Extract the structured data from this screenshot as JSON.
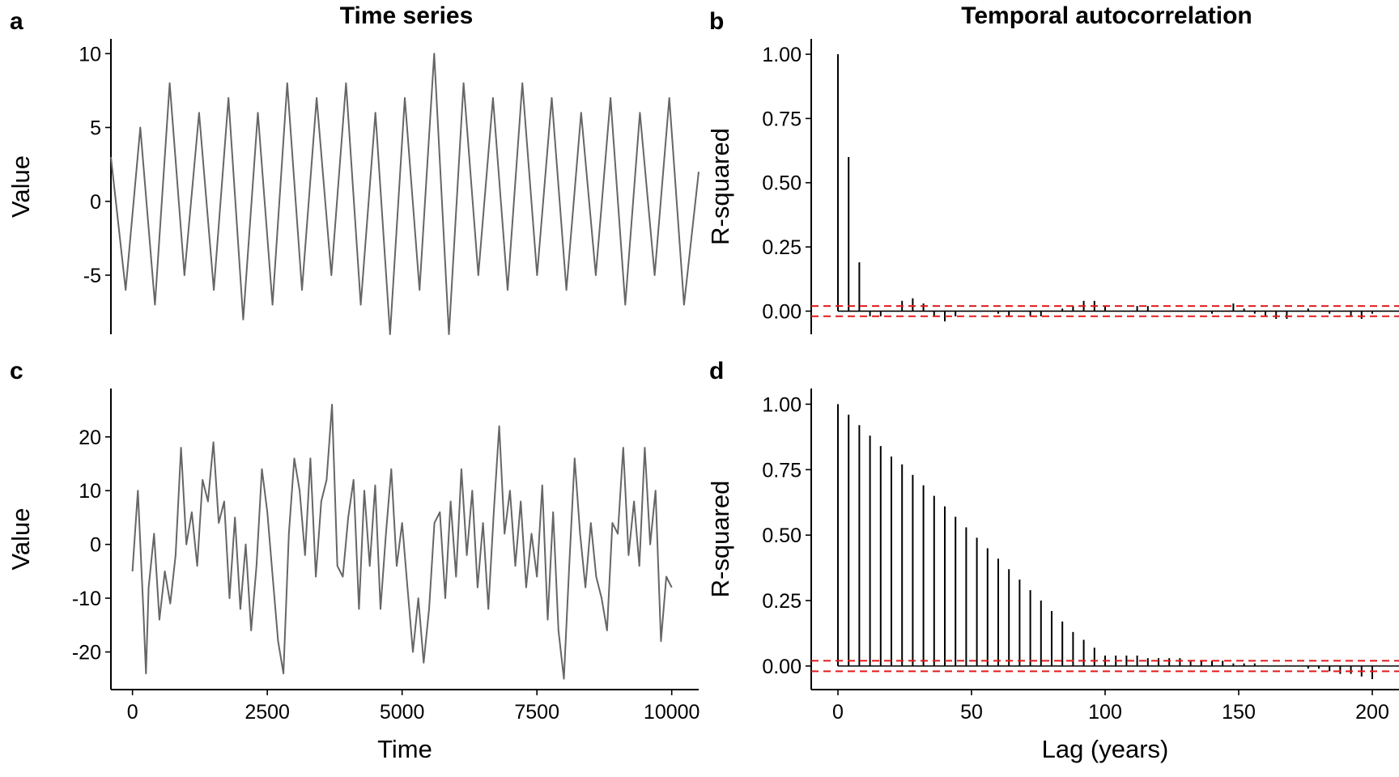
{
  "columns": {
    "left_title": "Time series",
    "right_title": "Temporal autocorrelation"
  },
  "chart_data": [
    {
      "id": "a",
      "letter": "a",
      "type": "line",
      "title": "Time series",
      "xlabel": "",
      "ylabel": "Value",
      "xlim": [
        0,
        10000
      ],
      "ylim": [
        -9,
        11
      ],
      "yticks": [
        10,
        5,
        0,
        -5
      ],
      "ytick_labels": [
        "10",
        "5",
        "0",
        "-5"
      ],
      "xticks": [],
      "grid": false,
      "color": "#666666",
      "series": [
        {
          "x": [
            0,
            250,
            500,
            750,
            1000,
            1250,
            1500,
            1750,
            2000,
            2250,
            2500,
            2750,
            3000,
            3250,
            3500,
            3750,
            4000,
            4250,
            4500,
            4750,
            5000,
            5250,
            5500,
            5750,
            6000,
            6250,
            6500,
            6750,
            7000,
            7250,
            7500,
            7750,
            8000,
            8250,
            8500,
            8750,
            9000,
            9250,
            9500,
            9750,
            10000
          ],
          "values": [
            3,
            -6,
            5,
            -7,
            8,
            -5,
            6,
            -6,
            7,
            -8,
            6,
            -7,
            8,
            -6,
            7,
            -5,
            8,
            -7,
            6,
            -9,
            7,
            -6,
            10,
            -9,
            8,
            -5,
            7,
            -6,
            8,
            -5,
            7,
            -6,
            6,
            -5,
            7,
            -7,
            6,
            -5,
            7,
            -7,
            2
          ]
        }
      ]
    },
    {
      "id": "b",
      "letter": "b",
      "type": "bar",
      "title": "Temporal autocorrelation",
      "xlabel": "",
      "ylabel": "R-squared",
      "xlim": [
        -10,
        210
      ],
      "ylim": [
        -0.09,
        1.06
      ],
      "yticks": [
        1.0,
        0.75,
        0.5,
        0.25,
        0.0
      ],
      "ytick_labels": [
        "1.00",
        "0.75",
        "0.50",
        "0.25",
        "0.00"
      ],
      "xticks": [],
      "ci": [
        0.02,
        -0.02
      ],
      "grid": false,
      "series": [
        {
          "x": [
            0,
            4,
            8,
            12,
            16,
            20,
            24,
            28,
            32,
            36,
            40,
            44,
            48,
            52,
            56,
            60,
            64,
            68,
            72,
            76,
            80,
            84,
            88,
            92,
            96,
            100,
            104,
            108,
            112,
            116,
            120,
            124,
            128,
            132,
            136,
            140,
            144,
            148,
            152,
            156,
            160,
            164,
            168,
            172,
            176,
            180,
            184,
            188,
            192,
            196,
            200
          ],
          "values": [
            1.0,
            0.6,
            0.19,
            -0.02,
            -0.02,
            0.0,
            0.04,
            0.05,
            0.03,
            -0.02,
            -0.04,
            -0.02,
            0.0,
            0.0,
            0.0,
            -0.01,
            -0.02,
            0.0,
            -0.02,
            -0.02,
            0.0,
            0.01,
            0.02,
            0.04,
            0.04,
            0.02,
            0.0,
            0.0,
            0.02,
            0.02,
            0.0,
            0.0,
            0.0,
            0.0,
            0.0,
            -0.01,
            0.0,
            0.03,
            0.01,
            -0.01,
            -0.02,
            -0.03,
            -0.03,
            0.0,
            0.01,
            0.0,
            -0.01,
            0.0,
            -0.02,
            -0.03,
            -0.01
          ]
        }
      ]
    },
    {
      "id": "c",
      "letter": "c",
      "type": "line",
      "title": "",
      "xlabel": "Time",
      "ylabel": "Value",
      "xlim": [
        -400,
        10500
      ],
      "ylim": [
        -27,
        29
      ],
      "yticks": [
        20,
        10,
        0,
        -10,
        -20
      ],
      "ytick_labels": [
        "20",
        "10",
        "0",
        "-10",
        "-20"
      ],
      "xticks": [
        0,
        2500,
        5000,
        7500,
        10000
      ],
      "xtick_labels": [
        "0",
        "2500",
        "5000",
        "7500",
        "10000"
      ],
      "grid": false,
      "color": "#666666",
      "series": [
        {
          "x": [
            0,
            100,
            200,
            250,
            300,
            400,
            500,
            600,
            700,
            800,
            900,
            1000,
            1100,
            1200,
            1300,
            1400,
            1500,
            1600,
            1700,
            1800,
            1900,
            2000,
            2100,
            2200,
            2300,
            2400,
            2500,
            2600,
            2700,
            2800,
            2900,
            3000,
            3100,
            3200,
            3300,
            3400,
            3500,
            3600,
            3700,
            3800,
            3900,
            4000,
            4100,
            4200,
            4300,
            4400,
            4500,
            4600,
            4700,
            4800,
            4900,
            5000,
            5100,
            5200,
            5300,
            5400,
            5500,
            5600,
            5700,
            5800,
            5900,
            6000,
            6100,
            6200,
            6300,
            6400,
            6500,
            6600,
            6700,
            6800,
            6900,
            7000,
            7100,
            7200,
            7300,
            7400,
            7500,
            7600,
            7700,
            7800,
            7900,
            8000,
            8100,
            8200,
            8300,
            8400,
            8500,
            8600,
            8700,
            8800,
            8900,
            9000,
            9100,
            9200,
            9300,
            9400,
            9500,
            9600,
            9700,
            9800,
            9900,
            10000
          ],
          "values": [
            -5,
            10,
            -12,
            -24,
            -8,
            2,
            -14,
            -5,
            -11,
            -2,
            18,
            0,
            6,
            -4,
            12,
            8,
            19,
            4,
            8,
            -10,
            5,
            -12,
            0,
            -16,
            -4,
            14,
            6,
            -6,
            -18,
            -24,
            2,
            16,
            10,
            -2,
            16,
            -6,
            8,
            12,
            26,
            -4,
            -6,
            5,
            12,
            -12,
            10,
            -4,
            11,
            -12,
            2,
            14,
            -4,
            4,
            -8,
            -20,
            -10,
            -22,
            -12,
            4,
            6,
            -10,
            8,
            -6,
            14,
            -2,
            10,
            -8,
            4,
            -12,
            6,
            22,
            2,
            10,
            -4,
            8,
            -8,
            2,
            -6,
            11,
            -14,
            6,
            -16,
            -25,
            -4,
            16,
            2,
            -8,
            4,
            -6,
            -10,
            -16,
            4,
            2,
            18,
            -2,
            8,
            -4,
            18,
            0,
            10,
            -18,
            -6,
            -8
          ]
        }
      ]
    },
    {
      "id": "d",
      "letter": "d",
      "type": "bar",
      "title": "",
      "xlabel": "Lag (years)",
      "ylabel": "R-squared",
      "xlim": [
        -10,
        210
      ],
      "ylim": [
        -0.09,
        1.06
      ],
      "yticks": [
        1.0,
        0.75,
        0.5,
        0.25,
        0.0
      ],
      "ytick_labels": [
        "1.00",
        "0.75",
        "0.50",
        "0.25",
        "0.00"
      ],
      "xticks": [
        0,
        50,
        100,
        150,
        200
      ],
      "xtick_labels": [
        "0",
        "50",
        "100",
        "150",
        "200"
      ],
      "ci": [
        0.02,
        -0.02
      ],
      "grid": false,
      "series": [
        {
          "x": [
            0,
            4,
            8,
            12,
            16,
            20,
            24,
            28,
            32,
            36,
            40,
            44,
            48,
            52,
            56,
            60,
            64,
            68,
            72,
            76,
            80,
            84,
            88,
            92,
            96,
            100,
            104,
            108,
            112,
            116,
            120,
            124,
            128,
            132,
            136,
            140,
            144,
            148,
            152,
            156,
            160,
            164,
            168,
            172,
            176,
            180,
            184,
            188,
            192,
            196,
            200
          ],
          "values": [
            1.0,
            0.96,
            0.92,
            0.88,
            0.84,
            0.8,
            0.77,
            0.73,
            0.69,
            0.65,
            0.61,
            0.57,
            0.53,
            0.49,
            0.45,
            0.41,
            0.37,
            0.33,
            0.29,
            0.25,
            0.21,
            0.17,
            0.13,
            0.1,
            0.07,
            0.04,
            0.04,
            0.04,
            0.04,
            0.03,
            0.03,
            0.03,
            0.03,
            0.02,
            0.02,
            0.02,
            0.02,
            0.01,
            0.01,
            0.01,
            0.0,
            0.0,
            0.0,
            0.0,
            -0.01,
            -0.01,
            -0.02,
            -0.03,
            -0.03,
            -0.04,
            -0.05
          ]
        }
      ]
    }
  ]
}
